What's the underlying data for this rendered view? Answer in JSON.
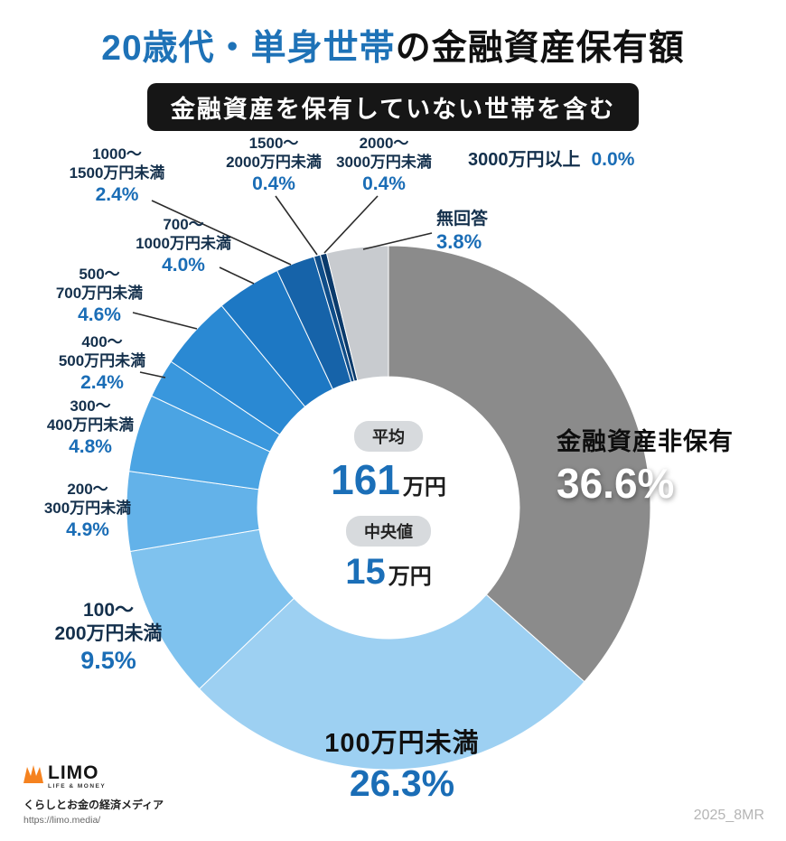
{
  "title": {
    "highlight": "20歳代・単身世帯",
    "rest": "の金融資産保有額"
  },
  "subtitle_badge": "金融資産を保有していない世帯を含む",
  "footer": {
    "brand": "LIMO",
    "brand_sub": "LIFE & MONEY",
    "tagline": "くらしとお金の経済メディア",
    "url": "https://limo.media/",
    "watermark": "2025_8MR"
  },
  "chart_data": {
    "type": "pie",
    "variant": "donut",
    "title": "20歳代・単身世帯の金融資産保有額",
    "subtitle": "金融資産を保有していない世帯を含む",
    "start": "top",
    "direction": "clockwise",
    "unit": "%",
    "center_stats": {
      "average_label": "平均",
      "average_value": "161",
      "average_unit": "万円",
      "median_label": "中央値",
      "median_value": "15",
      "median_unit": "万円"
    },
    "segments": [
      {
        "key": "no-assets",
        "label": "金融資産非保有",
        "value": 36.6,
        "pct": "36.6%",
        "color": "#8b8b8b",
        "label_lines": [
          "金融資産非保有"
        ]
      },
      {
        "key": "under-100",
        "label": "100万円未満",
        "value": 26.3,
        "pct": "26.3%",
        "color": "#9dd0f2",
        "label_lines": [
          "100万円未満"
        ]
      },
      {
        "key": "100-200",
        "label": "100〜200万円未満",
        "value": 9.5,
        "pct": "9.5%",
        "color": "#7fc2ee",
        "label_lines": [
          "100〜",
          "200万円未満"
        ]
      },
      {
        "key": "200-300",
        "label": "200〜300万円未満",
        "value": 4.9,
        "pct": "4.9%",
        "color": "#63b2e9",
        "label_lines": [
          "200〜",
          "300万円未満"
        ]
      },
      {
        "key": "300-400",
        "label": "300〜400万円未満",
        "value": 4.8,
        "pct": "4.8%",
        "color": "#4ba4e3",
        "label_lines": [
          "300〜",
          "400万円未満"
        ]
      },
      {
        "key": "400-500",
        "label": "400〜500万円未満",
        "value": 2.4,
        "pct": "2.4%",
        "color": "#3997dd",
        "label_lines": [
          "400〜",
          "500万円未満"
        ]
      },
      {
        "key": "500-700",
        "label": "500〜700万円未満",
        "value": 4.6,
        "pct": "4.6%",
        "color": "#2a89d3",
        "label_lines": [
          "500〜",
          "700万円未満"
        ]
      },
      {
        "key": "700-1000",
        "label": "700〜1000万円未満",
        "value": 4.0,
        "pct": "4.0%",
        "color": "#1d78c4",
        "label_lines": [
          "700〜",
          "1000万円未満"
        ]
      },
      {
        "key": "1000-1500",
        "label": "1000〜1500万円未満",
        "value": 2.4,
        "pct": "2.4%",
        "color": "#1663a9",
        "label_lines": [
          "1000〜",
          "1500万円未満"
        ]
      },
      {
        "key": "1500-2000",
        "label": "1500〜2000万円未満",
        "value": 0.4,
        "pct": "0.4%",
        "color": "#0f4d89",
        "label_lines": [
          "1500〜",
          "2000万円未満"
        ]
      },
      {
        "key": "2000-3000",
        "label": "2000〜3000万円未満",
        "value": 0.4,
        "pct": "0.4%",
        "color": "#0a3a6b",
        "label_lines": [
          "2000〜",
          "3000万円未満"
        ]
      },
      {
        "key": "3000-plus",
        "label": "3000万円以上",
        "value": 0.0,
        "pct": "0.0%",
        "color": "#062b50",
        "label_lines": [
          "3000万円以上"
        ]
      },
      {
        "key": "no-answer",
        "label": "無回答",
        "value": 3.8,
        "pct": "3.8%",
        "color": "#c8cbcf",
        "label_lines": [
          "無回答"
        ]
      }
    ]
  }
}
